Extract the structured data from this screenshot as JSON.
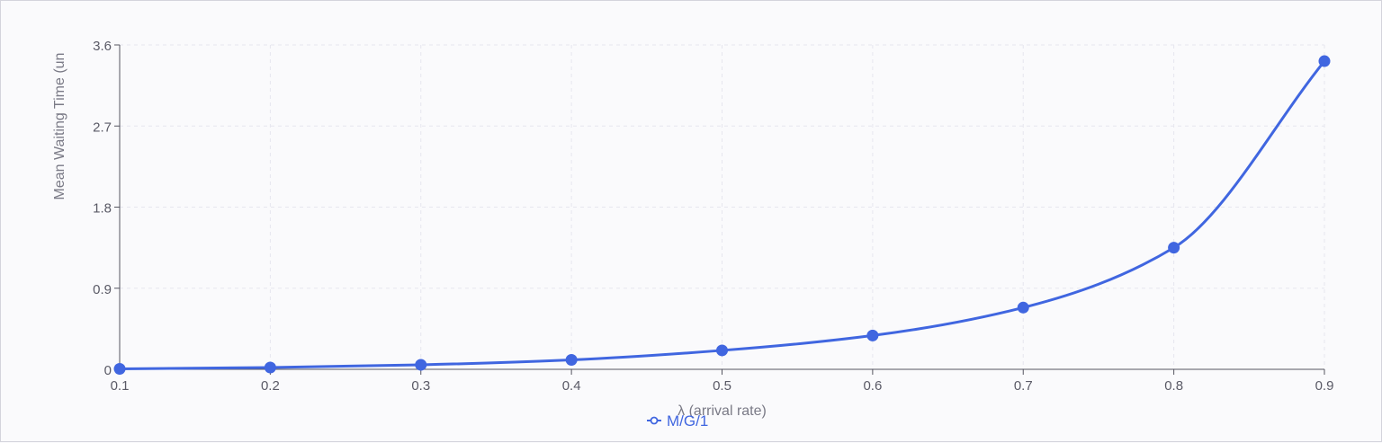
{
  "chart_data": {
    "type": "line",
    "x": [
      0.1,
      0.2,
      0.3,
      0.4,
      0.5,
      0.6,
      0.7,
      0.8,
      0.9
    ],
    "series": [
      {
        "name": "M/G/1",
        "values": [
          0.005,
          0.02,
          0.05,
          0.105,
          0.21,
          0.375,
          0.685,
          1.35,
          3.42
        ]
      }
    ],
    "xlabel": "λ (arrival rate)",
    "ylabel": "Mean Waiting Time (un",
    "xlim": [
      0.1,
      0.9
    ],
    "ylim": [
      0,
      3.6
    ],
    "x_ticks": [
      "0.1",
      "0.2",
      "0.3",
      "0.4",
      "0.5",
      "0.6",
      "0.7",
      "0.8",
      "0.9"
    ],
    "y_ticks": [
      "0",
      "0.9",
      "1.8",
      "2.7",
      "3.6"
    ],
    "grid": true,
    "legend_position": "bottom-center",
    "colors": {
      "series": "#4066e0",
      "grid": "#e6e6ee",
      "axis": "#555560"
    }
  }
}
